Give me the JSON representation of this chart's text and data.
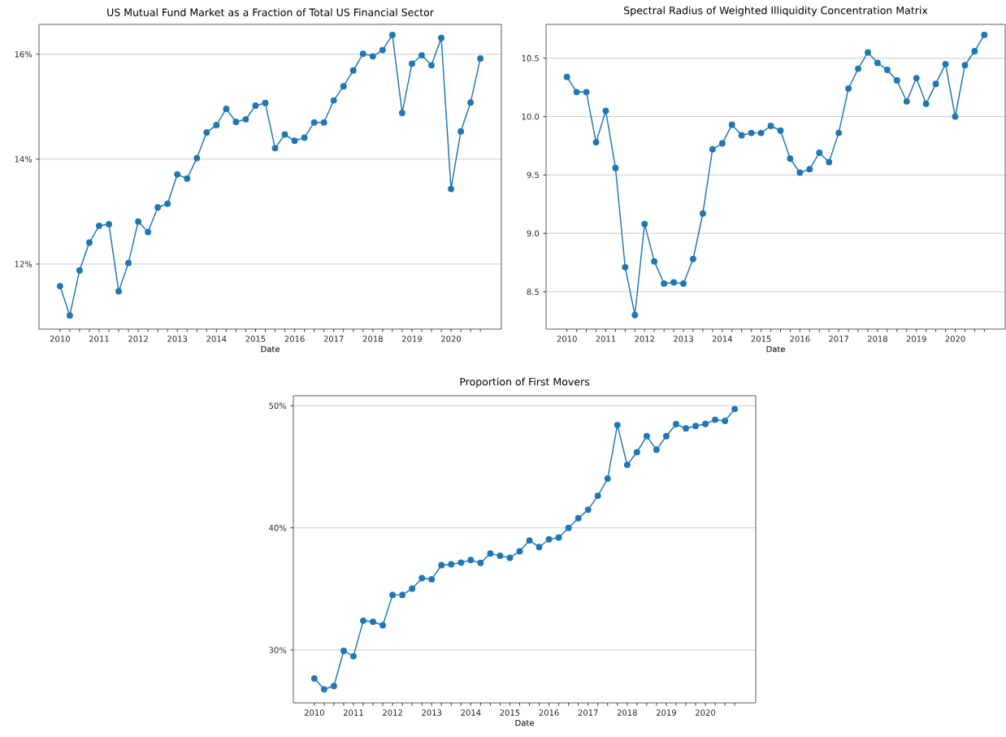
{
  "chart_data": [
    {
      "type": "line",
      "title": "US Mutual Fund Market as a Fraction of Total US Financial Sector",
      "xlabel": "Date",
      "categories": [
        "2010",
        null,
        null,
        null,
        "2011",
        null,
        null,
        null,
        "2012",
        null,
        null,
        null,
        "2013",
        null,
        null,
        null,
        "2014",
        null,
        null,
        null,
        "2015",
        null,
        null,
        null,
        "2016",
        null,
        null,
        null,
        "2017",
        null,
        null,
        null,
        "2018",
        null,
        null,
        null,
        "2019",
        null,
        null,
        null,
        "2020",
        null,
        null,
        null
      ],
      "series": [
        {
          "color": "#1f77b4",
          "values": [
            11.58,
            11.02,
            11.88,
            12.41,
            12.73,
            12.76,
            11.48,
            12.02,
            12.81,
            12.61,
            13.08,
            13.15,
            13.71,
            13.63,
            14.02,
            14.51,
            14.65,
            14.96,
            14.71,
            14.76,
            15.02,
            15.07,
            14.21,
            14.47,
            14.35,
            14.41,
            14.7,
            14.7,
            15.12,
            15.39,
            15.69,
            16.01,
            15.96,
            16.08,
            16.37,
            14.88,
            15.82,
            15.98,
            15.79,
            16.31,
            13.43,
            14.53,
            15.08,
            15.92
          ]
        }
      ],
      "ylim": [
        10.76,
        16.57
      ],
      "yticks": [
        {
          "value": 12,
          "label": "12%"
        },
        {
          "value": 14,
          "label": "14%"
        },
        {
          "value": 16,
          "label": "16%"
        }
      ],
      "grid": "y",
      "marker": "circle"
    },
    {
      "type": "line",
      "title": "Spectral Radius of Weighted Illiquidity Concentration Matrix",
      "xlabel": "Date",
      "categories": [
        "2010",
        null,
        null,
        null,
        "2011",
        null,
        null,
        null,
        "2012",
        null,
        null,
        null,
        "2013",
        null,
        null,
        null,
        "2014",
        null,
        null,
        null,
        "2015",
        null,
        null,
        null,
        "2016",
        null,
        null,
        null,
        "2017",
        null,
        null,
        null,
        "2018",
        null,
        null,
        null,
        "2019",
        null,
        null,
        null,
        "2020",
        null,
        null,
        null
      ],
      "series": [
        {
          "color": "#1f77b4",
          "values": [
            10.34,
            10.21,
            10.21,
            9.78,
            10.05,
            9.56,
            8.71,
            8.3,
            9.08,
            8.76,
            8.57,
            8.58,
            8.57,
            8.78,
            9.17,
            9.72,
            9.77,
            9.93,
            9.84,
            9.86,
            9.86,
            9.92,
            9.88,
            9.64,
            9.52,
            9.55,
            9.69,
            9.61,
            9.86,
            10.24,
            10.41,
            10.55,
            10.46,
            10.4,
            10.31,
            10.13,
            10.33,
            10.11,
            10.28,
            10.45,
            10.0,
            10.44,
            10.56,
            10.7
          ]
        }
      ],
      "ylim": [
        8.18,
        10.79
      ],
      "yticks": [
        {
          "value": 8.5,
          "label": "8.5"
        },
        {
          "value": 9,
          "label": "9.0"
        },
        {
          "value": 9.5,
          "label": "9.5"
        },
        {
          "value": 10,
          "label": "10.0"
        },
        {
          "value": 10.5,
          "label": "10.5"
        }
      ],
      "grid": "y",
      "marker": "circle"
    },
    {
      "type": "line",
      "title": "Proportion of First Movers",
      "xlabel": "Date",
      "categories": [
        "2010",
        null,
        null,
        null,
        "2011",
        null,
        null,
        null,
        "2012",
        null,
        null,
        null,
        "2013",
        null,
        null,
        null,
        "2014",
        null,
        null,
        null,
        "2015",
        null,
        null,
        null,
        "2016",
        null,
        null,
        null,
        "2017",
        null,
        null,
        null,
        "2018",
        null,
        null,
        null,
        "2019",
        null,
        null,
        null,
        "2020",
        null,
        null,
        null
      ],
      "series": [
        {
          "color": "#1f77b4",
          "values": [
            27.67,
            26.78,
            27.05,
            29.93,
            29.49,
            32.4,
            32.31,
            32.02,
            34.51,
            34.51,
            35.02,
            35.88,
            35.79,
            36.95,
            37.01,
            37.15,
            37.37,
            37.13,
            37.9,
            37.72,
            37.55,
            38.08,
            38.97,
            38.43,
            39.06,
            39.21,
            39.99,
            40.79,
            41.48,
            42.63,
            44.03,
            48.42,
            45.16,
            46.2,
            47.51,
            46.4,
            47.51,
            48.49,
            48.14,
            48.34,
            48.51,
            48.85,
            48.76,
            49.73
          ]
        }
      ],
      "ylim": [
        25.67,
        50.82
      ],
      "yticks": [
        {
          "value": 30,
          "label": "30%"
        },
        {
          "value": 40,
          "label": "40%"
        },
        {
          "value": 50,
          "label": "50%"
        }
      ],
      "grid": "y",
      "marker": "circle"
    }
  ]
}
